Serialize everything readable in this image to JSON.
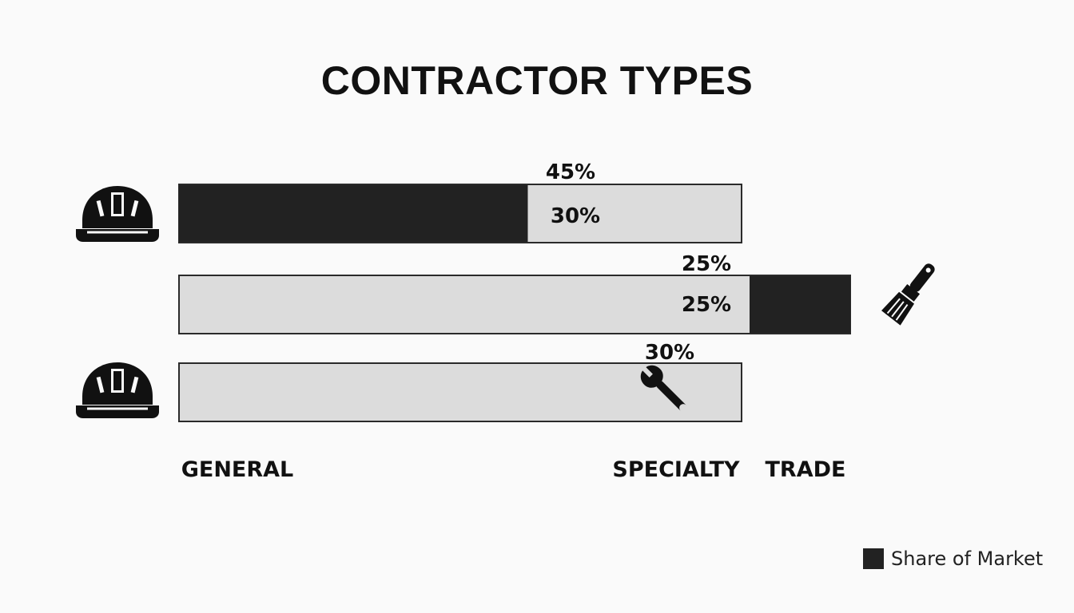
{
  "chart_data": {
    "type": "bar",
    "title": "CONTRACTOR TYPES",
    "categories": [
      "GENERAL",
      "SPECIALTY",
      "TRADE"
    ],
    "rows": [
      {
        "filled": 0.62,
        "fill_side": "left",
        "labels": [
          "45%",
          "30%"
        ],
        "left_icon": "hard-hat-icon"
      },
      {
        "filled": 0.15,
        "fill_side": "right",
        "labels": [
          "25%",
          "25%"
        ],
        "right_icon": "paintbrush-icon"
      },
      {
        "filled": 0.0,
        "fill_side": "left",
        "labels": [
          "30%"
        ],
        "left_icon": "hard-hat-icon",
        "inner_icon": "wrench-icon"
      }
    ],
    "legend": [
      "Share of Market"
    ],
    "colors": {
      "fill": "#222222",
      "track": "#dcdcdc",
      "outline": "#2a2a2a"
    }
  }
}
